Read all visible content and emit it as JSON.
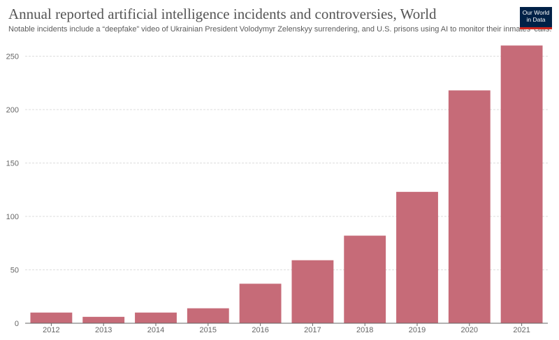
{
  "title": "Annual reported artificial intelligence incidents and controversies, World",
  "subtitle": "Notable incidents include a “deepfake” video of Ukrainian President Volodymyr Zelenskyy surrendering, and U.S. prisons using AI to monitor their inmates' calls.",
  "logo": {
    "line1": "Our World",
    "line2": "in Data"
  },
  "colors": {
    "bar": "#c66b78",
    "grid": "#dddddd",
    "axis": "#666666",
    "text": "#666666"
  },
  "chart_data": {
    "type": "bar",
    "categories": [
      "2012",
      "2013",
      "2014",
      "2015",
      "2016",
      "2017",
      "2018",
      "2019",
      "2020",
      "2021"
    ],
    "values": [
      10,
      6,
      10,
      14,
      37,
      59,
      82,
      123,
      218,
      260
    ],
    "yticks": [
      0,
      50,
      100,
      150,
      200,
      250
    ],
    "ylim": [
      0,
      260
    ],
    "grid": true,
    "legend": "none"
  }
}
